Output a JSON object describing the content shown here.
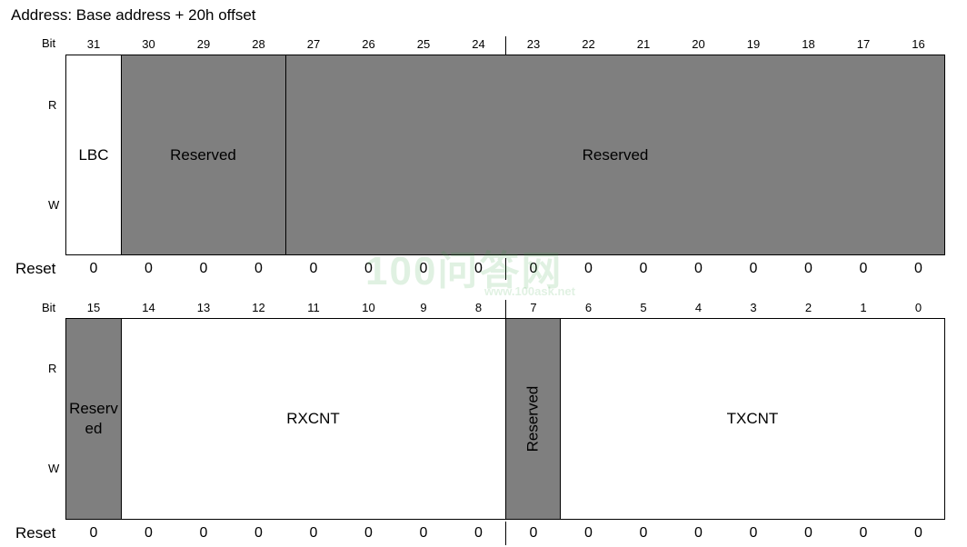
{
  "address": "Address: Base address + 20h offset",
  "labels": {
    "bit": "Bit",
    "read": "R",
    "write": "W",
    "reset": "Reset"
  },
  "upper": {
    "bits": [
      "31",
      "30",
      "29",
      "28",
      "27",
      "26",
      "25",
      "24",
      "23",
      "22",
      "21",
      "20",
      "19",
      "18",
      "17",
      "16"
    ],
    "fields": [
      {
        "name": "LBC",
        "access": "rw"
      },
      {
        "name": "Reserved",
        "access": "reserved"
      },
      {
        "name": "Reserved",
        "access": "reserved"
      }
    ],
    "reset": [
      "0",
      "0",
      "0",
      "0",
      "0",
      "0",
      "0",
      "0",
      "0",
      "0",
      "0",
      "0",
      "0",
      "0",
      "0",
      "0"
    ]
  },
  "lower": {
    "bits": [
      "15",
      "14",
      "13",
      "12",
      "11",
      "10",
      "9",
      "8",
      "7",
      "6",
      "5",
      "4",
      "3",
      "2",
      "1",
      "0"
    ],
    "fields": [
      {
        "name": "Reserv\ned",
        "access": "reserved"
      },
      {
        "name": "RXCNT",
        "access": "rw"
      },
      {
        "name": "Reserved",
        "access": "reserved"
      },
      {
        "name": "TXCNT",
        "access": "rw"
      }
    ],
    "reset": [
      "0",
      "0",
      "0",
      "0",
      "0",
      "0",
      "0",
      "0",
      "0",
      "0",
      "0",
      "0",
      "0",
      "0",
      "0",
      "0"
    ]
  },
  "watermark": {
    "logo": "100问答网",
    "url": "www.100ask.net"
  },
  "colors": {
    "reserved": "#7f7f7f",
    "field": "#ffffff",
    "border": "#000000"
  }
}
